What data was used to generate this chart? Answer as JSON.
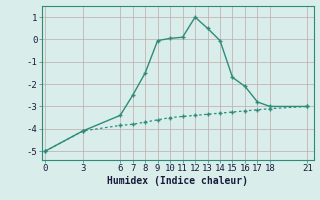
{
  "line1_x": [
    0,
    3,
    6,
    7,
    8,
    9,
    10,
    11,
    12,
    13,
    14,
    15,
    16,
    17,
    18,
    21
  ],
  "line1_y": [
    -5.0,
    -4.1,
    -3.4,
    -2.5,
    -1.5,
    -0.05,
    0.05,
    0.1,
    1.0,
    0.5,
    -0.05,
    -1.7,
    -2.1,
    -2.8,
    -3.0,
    -3.0
  ],
  "line2_x": [
    0,
    3,
    6,
    7,
    8,
    9,
    10,
    11,
    12,
    13,
    14,
    15,
    16,
    17,
    18,
    21
  ],
  "line2_y": [
    -5.0,
    -4.1,
    -3.85,
    -3.8,
    -3.7,
    -3.6,
    -3.5,
    -3.45,
    -3.4,
    -3.35,
    -3.3,
    -3.25,
    -3.2,
    -3.15,
    -3.1,
    -3.0
  ],
  "line_color": "#2e8b7a",
  "bg_color": "#d9eeeb",
  "grid_color": "#c0a8a8",
  "xlabel": "Humidex (Indice chaleur)",
  "xticks": [
    0,
    3,
    6,
    7,
    8,
    9,
    10,
    11,
    12,
    13,
    14,
    15,
    16,
    17,
    18,
    21
  ],
  "yticks": [
    -5,
    -4,
    -3,
    -2,
    -1,
    0,
    1
  ],
  "xlim": [
    -0.3,
    21.5
  ],
  "ylim": [
    -5.4,
    1.5
  ],
  "xlabel_fontsize": 7,
  "tick_fontsize": 6.5,
  "marker_size": 3.5,
  "linewidth1": 1.0,
  "linewidth2": 0.9
}
